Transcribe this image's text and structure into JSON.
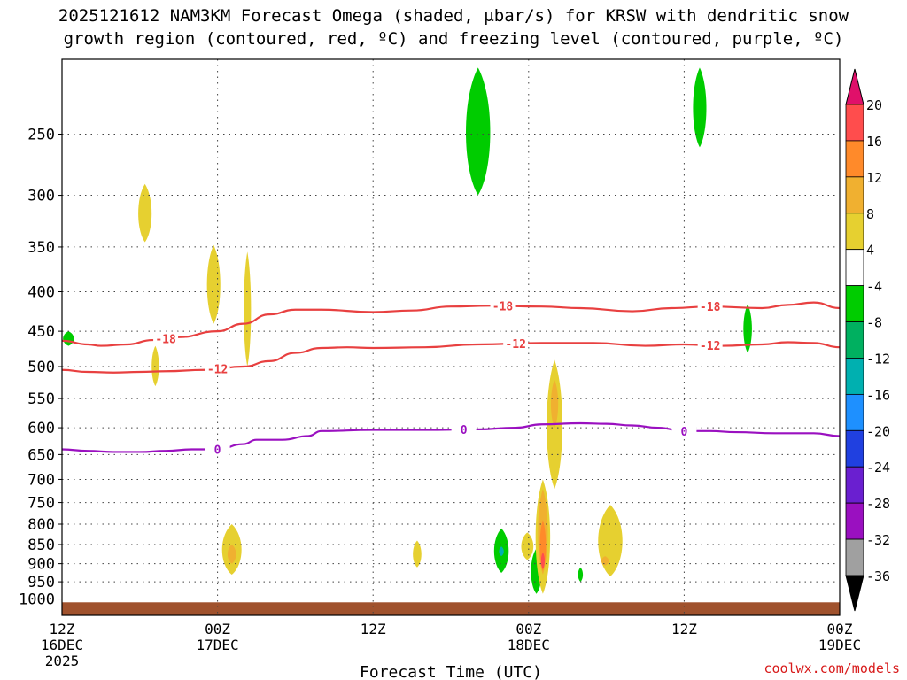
{
  "title": {
    "line1": "2025121612 NAM3KM Forecast Omega (shaded, μbar/s) for KRSW with dendritic snow",
    "line2": "growth region (contoured, red, ºC) and freezing level (contoured, purple, ºC)"
  },
  "credit": "coolwx.com/models",
  "chart_data": {
    "type": "heatmap",
    "xlabel": "Forecast Time (UTC)",
    "x_range_hours": [
      0,
      60
    ],
    "x_ticks": [
      {
        "hour": 0,
        "lines": [
          "12Z",
          "16DEC",
          "2025"
        ]
      },
      {
        "hour": 12,
        "lines": [
          "00Z",
          "17DEC"
        ]
      },
      {
        "hour": 24,
        "lines": [
          "12Z"
        ]
      },
      {
        "hour": 36,
        "lines": [
          "00Z",
          "18DEC"
        ]
      },
      {
        "hour": 48,
        "lines": [
          "12Z"
        ]
      },
      {
        "hour": 60,
        "lines": [
          "00Z",
          "19DEC"
        ]
      }
    ],
    "y_range_hPa": [
      1050,
      200
    ],
    "y_scale": "log-pressure",
    "y_ticks": [
      250,
      300,
      350,
      400,
      450,
      500,
      550,
      600,
      650,
      700,
      750,
      800,
      850,
      900,
      950,
      1000
    ],
    "grid": true,
    "colorbar": {
      "labels": [
        "20",
        "16",
        "12",
        "8",
        "4",
        "-4",
        "-8",
        "-12",
        "-16",
        "-20",
        "-24",
        "-28",
        "-32",
        "-36"
      ],
      "levels": [
        20,
        16,
        12,
        8,
        4,
        -4,
        -8,
        -12,
        -16,
        -20,
        -24,
        -28,
        -32,
        -36
      ],
      "colors": [
        "#ff4d4d",
        "#ff8a2a",
        "#f0b030",
        "#e6d030",
        "#ffffff",
        "#00cc00",
        "#00b060",
        "#00b0b0",
        "#1e90ff",
        "#2040e0",
        "#6a1fd0",
        "#9a10c0",
        "#a0a0a0"
      ],
      "top_arrow_color": "#e0106a",
      "bottom_arrow_color": "#000000"
    },
    "contour_labels": {
      "dgz_cold": "-18",
      "dgz_warm": "-12",
      "freezing": "0"
    },
    "contours": [
      {
        "name": "dgz-minus18",
        "value": -18,
        "color": "#e84040",
        "points": [
          [
            0,
            463
          ],
          [
            2,
            468
          ],
          [
            3,
            470
          ],
          [
            5,
            468
          ],
          [
            7,
            462
          ],
          [
            9,
            458
          ],
          [
            12,
            450
          ],
          [
            14,
            440
          ],
          [
            16,
            428
          ],
          [
            18,
            422
          ],
          [
            20,
            422
          ],
          [
            24,
            425
          ],
          [
            27,
            423
          ],
          [
            30,
            418
          ],
          [
            33,
            417
          ],
          [
            37,
            418
          ],
          [
            40,
            420
          ],
          [
            44,
            424
          ],
          [
            47,
            420
          ],
          [
            50,
            418
          ],
          [
            54,
            420
          ],
          [
            56,
            416
          ],
          [
            58,
            413
          ],
          [
            60,
            420
          ]
        ]
      },
      {
        "name": "dgz-minus12",
        "value": -12,
        "color": "#e84040",
        "points": [
          [
            0,
            505
          ],
          [
            2,
            508
          ],
          [
            4,
            509
          ],
          [
            6,
            508
          ],
          [
            8,
            507
          ],
          [
            11,
            505
          ],
          [
            14,
            500
          ],
          [
            16,
            492
          ],
          [
            18,
            480
          ],
          [
            20,
            473
          ],
          [
            22,
            472
          ],
          [
            24,
            473
          ],
          [
            28,
            472
          ],
          [
            32,
            468
          ],
          [
            37,
            466
          ],
          [
            41,
            466
          ],
          [
            45,
            470
          ],
          [
            48,
            468
          ],
          [
            51,
            470
          ],
          [
            54,
            468
          ],
          [
            56,
            465
          ],
          [
            58,
            466
          ],
          [
            60,
            472
          ]
        ]
      },
      {
        "name": "freezing-level",
        "value": 0,
        "color": "#9a10c0",
        "points": [
          [
            0,
            640
          ],
          [
            2,
            643
          ],
          [
            4,
            645
          ],
          [
            6,
            645
          ],
          [
            8,
            643
          ],
          [
            10,
            640
          ],
          [
            12,
            640
          ],
          [
            14,
            630
          ],
          [
            15,
            622
          ],
          [
            17,
            622
          ],
          [
            19,
            615
          ],
          [
            20,
            606
          ],
          [
            24,
            604
          ],
          [
            28,
            604
          ],
          [
            32,
            603
          ],
          [
            35,
            600
          ],
          [
            37,
            594
          ],
          [
            40,
            592
          ],
          [
            42,
            593
          ],
          [
            44,
            596
          ],
          [
            46,
            600
          ],
          [
            48,
            606
          ],
          [
            50,
            606
          ],
          [
            52,
            608
          ],
          [
            55,
            610
          ],
          [
            58,
            610
          ],
          [
            60,
            615
          ]
        ]
      }
    ],
    "shaded_areas": [
      {
        "omega": -6,
        "t_hours": 0.5,
        "p_top": 450,
        "p_bot": 470,
        "width_hours": 0.9,
        "color": "#00cc00"
      },
      {
        "omega": 6,
        "t_hours": 6.4,
        "p_top": 290,
        "p_bot": 345,
        "width_hours": 1.1,
        "color": "#e6d030"
      },
      {
        "omega": 6,
        "t_hours": 7.2,
        "p_top": 470,
        "p_bot": 530,
        "width_hours": 0.6,
        "color": "#e6d030"
      },
      {
        "omega": 6,
        "t_hours": 11.7,
        "p_top": 348,
        "p_bot": 440,
        "width_hours": 1.1,
        "color": "#e6d030"
      },
      {
        "omega": 6,
        "t_hours": 14.3,
        "p_top": 355,
        "p_bot": 500,
        "width_hours": 0.6,
        "color": "#e6d030"
      },
      {
        "omega": 6,
        "t_hours": 13.1,
        "p_top": 800,
        "p_bot": 930,
        "width_hours": 1.6,
        "color": "#e6d030"
      },
      {
        "omega": 10,
        "t_hours": 13.1,
        "p_top": 850,
        "p_bot": 900,
        "width_hours": 0.7,
        "color": "#f0b030"
      },
      {
        "omega": 6,
        "t_hours": 27.4,
        "p_top": 840,
        "p_bot": 910,
        "width_hours": 0.7,
        "color": "#e6d030"
      },
      {
        "omega": -6,
        "t_hours": 32.1,
        "p_top": 205,
        "p_bot": 300,
        "width_hours": 2.0,
        "color": "#00cc00"
      },
      {
        "omega": -6,
        "t_hours": 33.9,
        "p_top": 810,
        "p_bot": 925,
        "width_hours": 1.2,
        "color": "#00cc00"
      },
      {
        "omega": -14,
        "t_hours": 33.9,
        "p_top": 855,
        "p_bot": 880,
        "width_hours": 0.4,
        "color": "#00b0b0"
      },
      {
        "omega": 6,
        "t_hours": 35.9,
        "p_top": 820,
        "p_bot": 890,
        "width_hours": 1.0,
        "color": "#e6d030"
      },
      {
        "omega": -6,
        "t_hours": 36.6,
        "p_top": 860,
        "p_bot": 985,
        "width_hours": 0.9,
        "color": "#00cc00"
      },
      {
        "omega": 6,
        "t_hours": 37.1,
        "p_top": 700,
        "p_bot": 985,
        "width_hours": 1.2,
        "color": "#e6d030"
      },
      {
        "omega": 10,
        "t_hours": 37.1,
        "p_top": 720,
        "p_bot": 930,
        "width_hours": 0.8,
        "color": "#f0b030"
      },
      {
        "omega": 14,
        "t_hours": 37.1,
        "p_top": 790,
        "p_bot": 920,
        "width_hours": 0.5,
        "color": "#ff8a2a"
      },
      {
        "omega": 18,
        "t_hours": 37.1,
        "p_top": 870,
        "p_bot": 915,
        "width_hours": 0.3,
        "color": "#ff4d4d"
      },
      {
        "omega": 6,
        "t_hours": 38.0,
        "p_top": 490,
        "p_bot": 720,
        "width_hours": 1.3,
        "color": "#e6d030"
      },
      {
        "omega": 10,
        "t_hours": 38.0,
        "p_top": 520,
        "p_bot": 600,
        "width_hours": 0.6,
        "color": "#f0b030"
      },
      {
        "omega": -6,
        "t_hours": 40.0,
        "p_top": 910,
        "p_bot": 950,
        "width_hours": 0.4,
        "color": "#00cc00"
      },
      {
        "omega": 6,
        "t_hours": 42.3,
        "p_top": 755,
        "p_bot": 935,
        "width_hours": 2.0,
        "color": "#e6d030"
      },
      {
        "omega": 10,
        "t_hours": 41.9,
        "p_top": 880,
        "p_bot": 905,
        "width_hours": 0.6,
        "color": "#f0b030"
      },
      {
        "omega": -6,
        "t_hours": 49.2,
        "p_top": 205,
        "p_bot": 260,
        "width_hours": 1.1,
        "color": "#00cc00"
      },
      {
        "omega": -6,
        "t_hours": 52.9,
        "p_top": 415,
        "p_bot": 480,
        "width_hours": 0.7,
        "color": "#00cc00"
      }
    ],
    "ground": {
      "p_top": 1010,
      "color": "#a0522d"
    }
  }
}
